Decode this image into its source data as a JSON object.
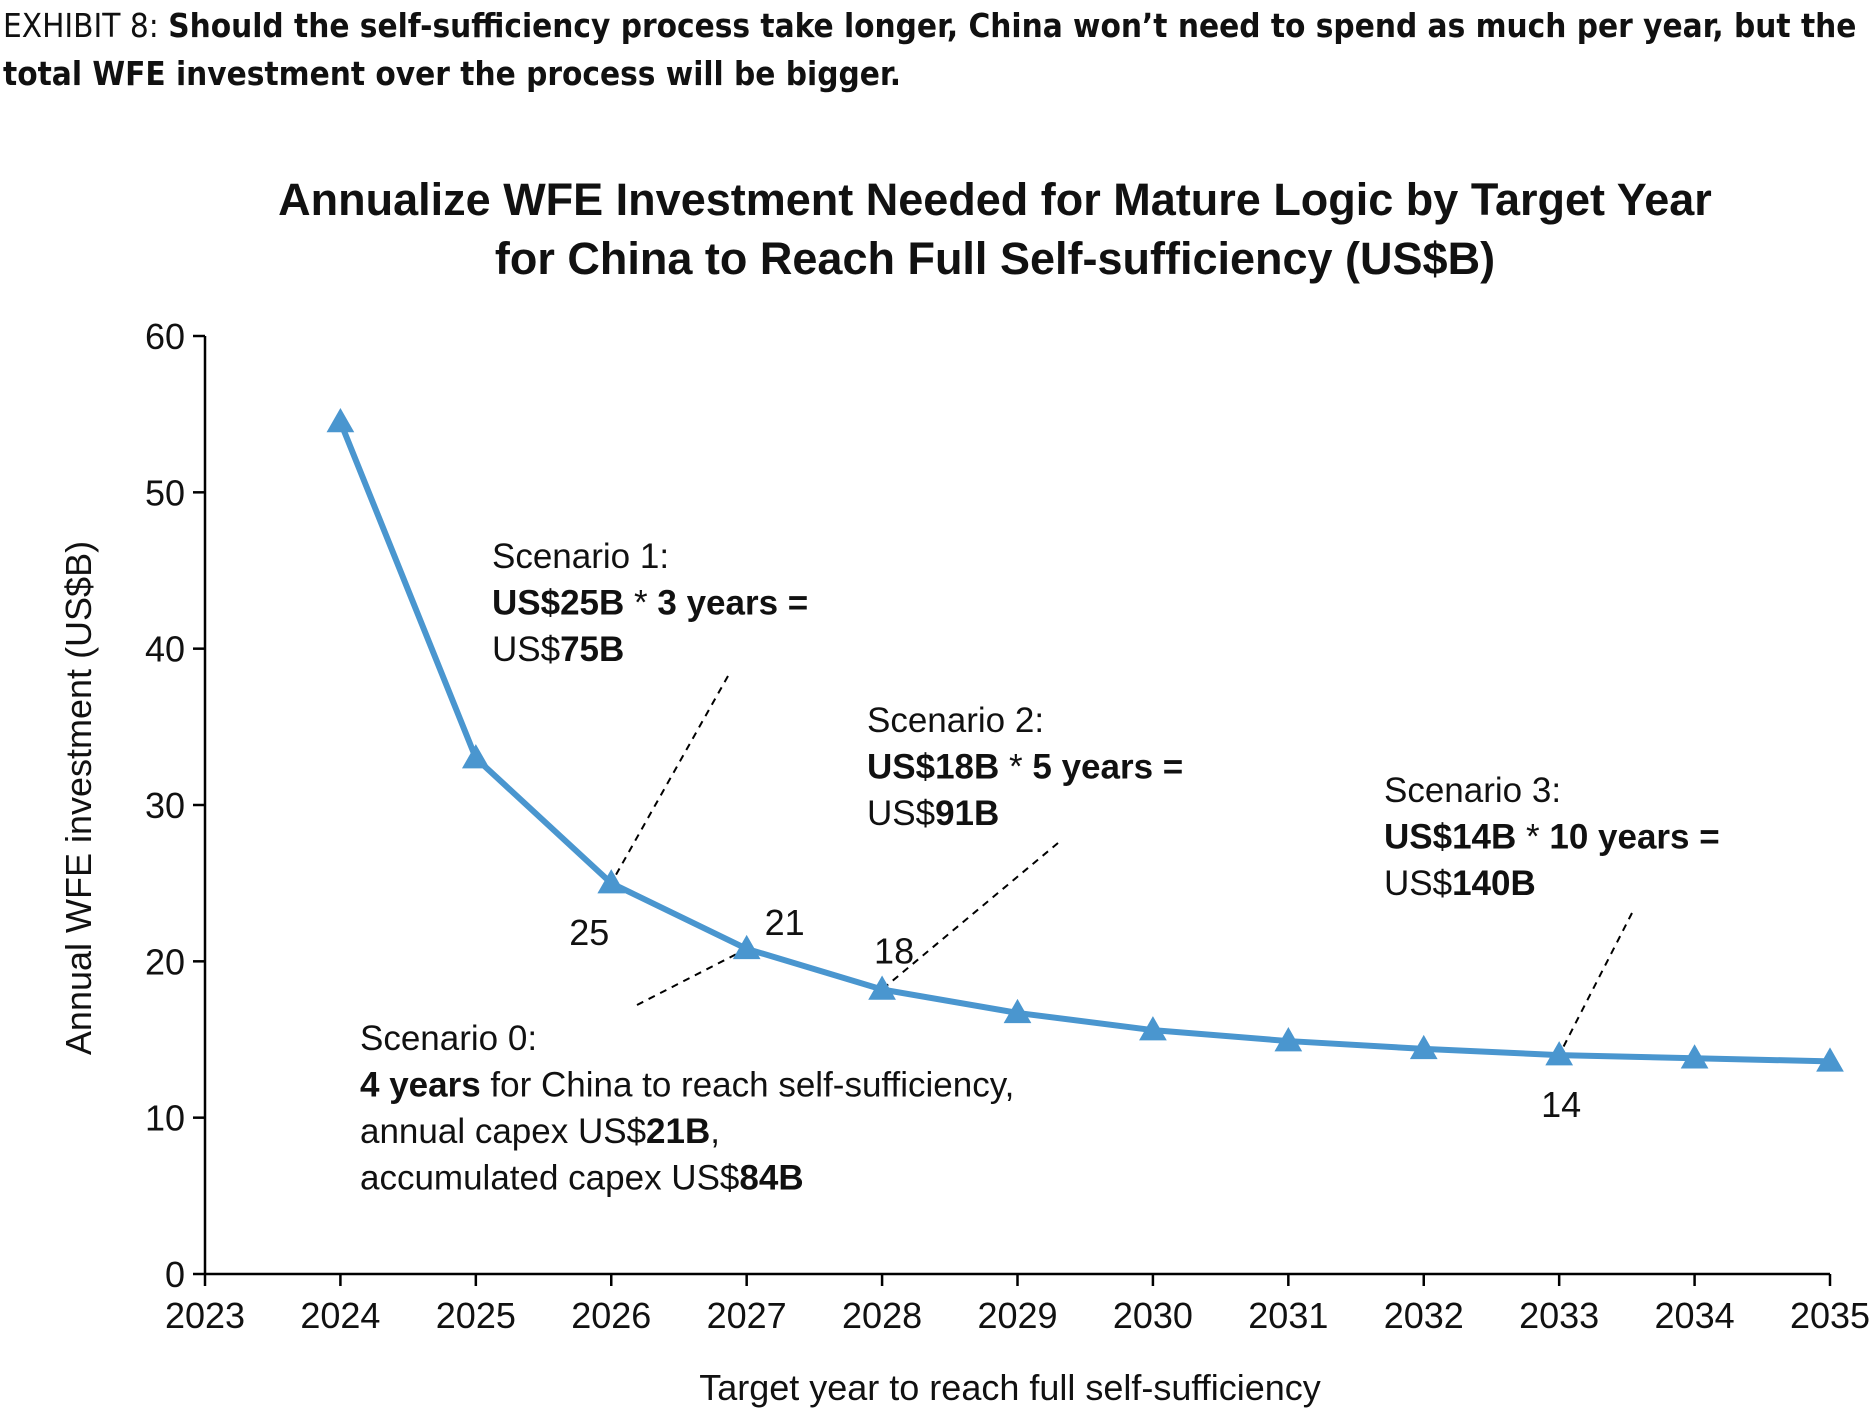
{
  "exhibit": {
    "label": "EXHIBIT 8:",
    "text": "Should the self-sufficiency process take longer, China won’t need to spend as much per year, but the total WFE investment over the process will be bigger."
  },
  "chart_data": {
    "type": "line",
    "title_line1": "Annualize WFE Investment Needed for Mature Logic by Target Year",
    "title_line2": "for China to Reach Full Self-sufficiency (US$B)",
    "xlabel": "Target year to reach full self-sufficiency",
    "ylabel": "Annual WFE investment (US$B)",
    "x_ticks": [
      "2023",
      "2024",
      "2025",
      "2026",
      "2027",
      "2028",
      "2029",
      "2030",
      "2031",
      "2032",
      "2033",
      "2034",
      "2035"
    ],
    "y_ticks": [
      "0",
      "10",
      "20",
      "30",
      "40",
      "50",
      "60"
    ],
    "xlim": [
      2023,
      2035
    ],
    "ylim": [
      0,
      60
    ],
    "color": "#4a96cf",
    "marker": "triangle",
    "x": [
      2024,
      2025,
      2026,
      2027,
      2028,
      2029,
      2030,
      2031,
      2032,
      2033,
      2034,
      2035
    ],
    "values": [
      54.5,
      33,
      25,
      20.8,
      18.2,
      16.7,
      15.6,
      14.9,
      14.4,
      14.0,
      13.8,
      13.6
    ],
    "data_labels": [
      {
        "x": 2026,
        "text": "25"
      },
      {
        "x": 2027,
        "text": "21"
      },
      {
        "x": 2028,
        "text": "18"
      },
      {
        "x": 2033,
        "text": "14"
      }
    ],
    "annotations": [
      {
        "name": "scenario-0",
        "lines": [
          [
            {
              "t": "Scenario 0:",
              "b": false
            }
          ],
          [
            {
              "t": "4 years",
              "b": true
            },
            {
              "t": " for China to reach self-sufficiency,",
              "b": false
            }
          ],
          [
            {
              "t": "annual capex US$",
              "b": false
            },
            {
              "t": "21B",
              "b": true
            },
            {
              "t": ",",
              "b": false
            }
          ],
          [
            {
              "t": "accumulated capex US$",
              "b": false
            },
            {
              "t": "84B",
              "b": true
            }
          ]
        ]
      },
      {
        "name": "scenario-1",
        "lines": [
          [
            {
              "t": "Scenario 1:",
              "b": false
            }
          ],
          [
            {
              "t": "US$25B",
              "b": true
            },
            {
              "t": " * ",
              "b": false
            },
            {
              "t": "3 years =",
              "b": true
            }
          ],
          [
            {
              "t": "US$",
              "b": false
            },
            {
              "t": "75B",
              "b": true
            }
          ]
        ]
      },
      {
        "name": "scenario-2",
        "lines": [
          [
            {
              "t": "Scenario 2:",
              "b": false
            }
          ],
          [
            {
              "t": "US$18B",
              "b": true
            },
            {
              "t": " * ",
              "b": false
            },
            {
              "t": "5 years =",
              "b": true
            }
          ],
          [
            {
              "t": "US$",
              "b": false
            },
            {
              "t": "91B",
              "b": true
            }
          ]
        ]
      },
      {
        "name": "scenario-3",
        "lines": [
          [
            {
              "t": "Scenario 3:",
              "b": false
            }
          ],
          [
            {
              "t": "US$14B",
              "b": true
            },
            {
              "t": " * ",
              "b": false
            },
            {
              "t": "10 years =",
              "b": true
            }
          ],
          [
            {
              "t": "US$",
              "b": false
            },
            {
              "t": "140B",
              "b": true
            }
          ]
        ]
      }
    ]
  }
}
